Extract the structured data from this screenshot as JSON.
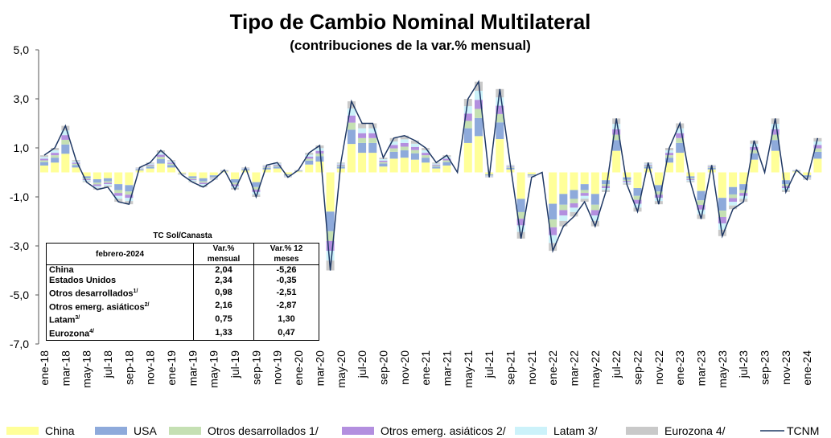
{
  "chart_data": {
    "type": "bar",
    "stacked": true,
    "title": "Tipo de Cambio Nominal Multilateral",
    "subtitle": "(contribuciones de la var.% mensual)",
    "categories": [
      "ene-18",
      null,
      "mar-18",
      null,
      "may-18",
      null,
      "jul-18",
      null,
      "sep-18",
      null,
      "nov-18",
      null,
      "ene-19",
      null,
      "mar-19",
      null,
      "may-19",
      null,
      "jul-19",
      null,
      "sep-19",
      null,
      "nov-19",
      null,
      "ene-20",
      null,
      "mar-20",
      null,
      "may-20",
      null,
      "jul-20",
      null,
      "sep-20",
      null,
      "nov-20",
      null,
      "ene-21",
      null,
      "mar-21",
      null,
      "may-21",
      null,
      "jul-21",
      null,
      "sep-21",
      null,
      "nov-21",
      null,
      "ene-22",
      null,
      "mar-22",
      null,
      "may-22",
      null,
      "jul-22",
      null,
      "sep-22",
      null,
      "nov-22",
      null,
      "ene-23",
      null,
      "mar-23",
      null,
      "may-23",
      null,
      "jul-23",
      null,
      "sep-23",
      null,
      "nov-23",
      null,
      "ene-24",
      null
    ],
    "ylim": [
      -7,
      5
    ],
    "yticks": [
      {
        "value": 5,
        "label": "5,0"
      },
      {
        "value": 3,
        "label": "3,0"
      },
      {
        "value": 1,
        "label": "1,0"
      },
      {
        "value": -1,
        "label": "-1,0"
      },
      {
        "value": -3,
        "label": "-3,0"
      },
      {
        "value": -5,
        "label": "-5,0"
      },
      {
        "value": -7,
        "label": "-7,0"
      }
    ],
    "grid": false,
    "series": [
      {
        "name": "China",
        "color": "#ffff99",
        "values": [
          0.28,
          0.4,
          0.76,
          0.2,
          -0.16,
          -0.28,
          -0.24,
          -0.48,
          -0.52,
          0.08,
          0.16,
          0.36,
          0.2,
          -0.04,
          -0.16,
          -0.24,
          -0.12,
          0.04,
          -0.28,
          0.08,
          -0.4,
          0.12,
          0.16,
          -0.08,
          0.04,
          0.32,
          0.44,
          -1.6,
          0.16,
          1.16,
          0.8,
          0.8,
          0.24,
          0.56,
          0.6,
          0.52,
          0.4,
          0.16,
          0.28,
          0,
          1.2,
          1.48,
          -0.08,
          1.36,
          0.12,
          -1.08,
          -0.08,
          0,
          -1.28,
          -0.88,
          -0.72,
          -0.48,
          -0.88,
          -0.32,
          0.88,
          -0.2,
          -0.64,
          0.16,
          -0.52,
          0.4,
          0.8,
          -0.16,
          -0.76,
          0.12,
          -1.04,
          -0.6,
          -0.48,
          0.52,
          0,
          0.88,
          -0.32,
          0.04,
          -0.12,
          0.56
        ]
      },
      {
        "name": "USA",
        "color": "#8eaadb",
        "values": [
          0.14,
          0.2,
          0.38,
          0.1,
          -0.08,
          -0.14,
          -0.12,
          -0.24,
          -0.26,
          0.04,
          0.08,
          0.18,
          0.1,
          -0.02,
          -0.08,
          -0.12,
          -0.06,
          0.02,
          -0.14,
          0.04,
          -0.2,
          0.06,
          0.08,
          -0.04,
          0.02,
          0.16,
          0.22,
          -0.8,
          0.08,
          0.58,
          0.4,
          0.4,
          0.12,
          0.28,
          0.3,
          0.26,
          0.2,
          0.08,
          0.14,
          0,
          0.6,
          0.74,
          -0.04,
          0.68,
          0.06,
          -0.54,
          -0.04,
          0,
          -0.64,
          -0.44,
          -0.36,
          -0.24,
          -0.44,
          -0.16,
          0.44,
          -0.1,
          -0.32,
          0.08,
          -0.26,
          0.2,
          0.4,
          -0.08,
          -0.38,
          0.06,
          -0.52,
          -0.3,
          -0.24,
          0.26,
          0,
          0.44,
          -0.16,
          0.02,
          -0.06,
          0.28
        ]
      },
      {
        "name": "Otros desarrollados 1/",
        "color": "#c5e0b3",
        "values": [
          0.07,
          0.1,
          0.19,
          0.05,
          -0.04,
          -0.07,
          -0.06,
          -0.12,
          -0.13,
          0.02,
          0.04,
          0.09,
          0.05,
          -0.01,
          -0.04,
          -0.06,
          -0.03,
          0.01,
          -0.07,
          0.02,
          -0.1,
          0.03,
          0.04,
          -0.02,
          0.01,
          0.08,
          0.11,
          -0.4,
          0.04,
          0.29,
          0.2,
          0.2,
          0.06,
          0.14,
          0.15,
          0.13,
          0.1,
          0.04,
          0.07,
          0,
          0.3,
          0.37,
          -0.02,
          0.34,
          0.03,
          -0.27,
          -0.02,
          0,
          -0.32,
          -0.22,
          -0.18,
          -0.12,
          -0.22,
          -0.08,
          0.22,
          -0.05,
          -0.16,
          0.04,
          -0.13,
          0.1,
          0.2,
          -0.04,
          -0.19,
          0.03,
          -0.26,
          -0.15,
          -0.12,
          0.13,
          0,
          0.22,
          -0.08,
          0.01,
          -0.03,
          0.14
        ]
      },
      {
        "name": "Otros emerg. asiáticos 2/",
        "color": "#b38fdf",
        "values": [
          0.07,
          0.1,
          0.19,
          0.05,
          -0.04,
          -0.07,
          -0.06,
          -0.12,
          -0.13,
          0.02,
          0.04,
          0.09,
          0.05,
          -0.01,
          -0.04,
          -0.06,
          -0.03,
          0.01,
          -0.07,
          0.02,
          -0.1,
          0.03,
          0.04,
          -0.02,
          0.01,
          0.08,
          0.11,
          -0.4,
          0.04,
          0.29,
          0.2,
          0.2,
          0.06,
          0.14,
          0.15,
          0.13,
          0.1,
          0.04,
          0.07,
          0,
          0.3,
          0.37,
          -0.02,
          0.34,
          0.03,
          -0.27,
          -0.02,
          0,
          -0.32,
          -0.22,
          -0.18,
          -0.12,
          -0.22,
          -0.08,
          0.22,
          -0.05,
          -0.16,
          0.04,
          -0.13,
          0.1,
          0.2,
          -0.04,
          -0.19,
          0.03,
          -0.26,
          -0.15,
          -0.12,
          0.13,
          0,
          0.22,
          -0.08,
          0.01,
          -0.03,
          0.14
        ]
      },
      {
        "name": "Latam 3/",
        "color": "#ccf2fa",
        "values": [
          0.07,
          0.1,
          0.19,
          0.05,
          -0.04,
          -0.07,
          -0.06,
          -0.12,
          -0.13,
          0.02,
          0.04,
          0.09,
          0.05,
          -0.01,
          -0.04,
          -0.06,
          -0.03,
          0.01,
          -0.07,
          0.02,
          -0.1,
          0.03,
          0.04,
          -0.02,
          0.01,
          0.08,
          0.11,
          -0.4,
          0.04,
          0.29,
          0.2,
          0.2,
          0.06,
          0.14,
          0.15,
          0.13,
          0.1,
          0.04,
          0.07,
          0,
          0.3,
          0.37,
          -0.02,
          0.34,
          0.03,
          -0.27,
          -0.02,
          0,
          -0.32,
          -0.22,
          -0.18,
          -0.12,
          -0.22,
          -0.08,
          0.22,
          -0.05,
          -0.16,
          0.04,
          -0.13,
          0.1,
          0.2,
          -0.04,
          -0.19,
          0.03,
          -0.26,
          -0.15,
          -0.12,
          0.13,
          0,
          0.22,
          -0.08,
          0.01,
          -0.03,
          0.14
        ]
      },
      {
        "name": "Eurozona 4/",
        "color": "#c9c9c9",
        "values": [
          0.07,
          0.1,
          0.19,
          0.05,
          -0.04,
          -0.07,
          -0.06,
          -0.12,
          -0.13,
          0.02,
          0.04,
          0.09,
          0.05,
          -0.01,
          -0.04,
          -0.06,
          -0.03,
          0.01,
          -0.07,
          0.02,
          -0.1,
          0.03,
          0.04,
          -0.02,
          0.01,
          0.08,
          0.11,
          -0.4,
          0.04,
          0.29,
          0.2,
          0.2,
          0.06,
          0.14,
          0.15,
          0.13,
          0.1,
          0.04,
          0.07,
          0,
          0.3,
          0.37,
          -0.02,
          0.34,
          0.03,
          -0.27,
          -0.02,
          0,
          -0.32,
          -0.22,
          -0.18,
          -0.12,
          -0.22,
          -0.08,
          0.22,
          -0.05,
          -0.16,
          0.04,
          -0.13,
          0.1,
          0.2,
          -0.04,
          -0.19,
          0.03,
          -0.26,
          -0.15,
          -0.12,
          0.13,
          0,
          0.22,
          -0.08,
          0.01,
          -0.03,
          0.14
        ]
      },
      {
        "name": "TCNM",
        "color": "#1f3864",
        "type": "line",
        "values": [
          0.7,
          1.0,
          1.9,
          0.5,
          -0.4,
          -0.7,
          -0.6,
          -1.2,
          -1.3,
          0.2,
          0.4,
          0.9,
          0.5,
          -0.1,
          -0.4,
          -0.6,
          -0.3,
          0.1,
          -0.7,
          0.2,
          -1.0,
          0.3,
          0.4,
          -0.2,
          0.1,
          0.8,
          1.1,
          -4.0,
          0.4,
          2.9,
          2.0,
          2.0,
          0.6,
          1.4,
          1.5,
          1.3,
          1.0,
          0.4,
          0.7,
          0.0,
          3.0,
          3.7,
          -0.2,
          3.4,
          0.3,
          -2.7,
          -0.2,
          0.0,
          -3.2,
          -2.2,
          -1.8,
          -1.2,
          -2.2,
          -0.8,
          2.2,
          -0.5,
          -1.6,
          0.4,
          -1.3,
          1.0,
          2.0,
          -0.4,
          -1.9,
          0.3,
          -2.6,
          -1.5,
          -1.2,
          1.3,
          0.0,
          2.2,
          -0.8,
          0.1,
          -0.3,
          1.4
        ]
      }
    ]
  },
  "table": {
    "title": "TC Sol/Canasta",
    "header": [
      "febrero-2024",
      "Var.% mensual",
      "Var.% 12 meses"
    ],
    "rows": [
      {
        "label": "China",
        "values": [
          "2,04",
          "-5,26"
        ]
      },
      {
        "label": "Estados Unidos",
        "values": [
          "2,34",
          "-0,35"
        ]
      },
      {
        "label": "Otros desarrollados",
        "note": "1/",
        "values": [
          "0,98",
          "-2,51"
        ]
      },
      {
        "label": "Otros emerg. asiáticos",
        "note": "2/",
        "values": [
          "2,16",
          "-2,87"
        ]
      },
      {
        "label": "Latam",
        "note": "3/",
        "values": [
          "0,75",
          "1,30"
        ]
      },
      {
        "label": "Eurozona",
        "note": "4/",
        "values": [
          "1,33",
          "0,47"
        ]
      }
    ]
  }
}
